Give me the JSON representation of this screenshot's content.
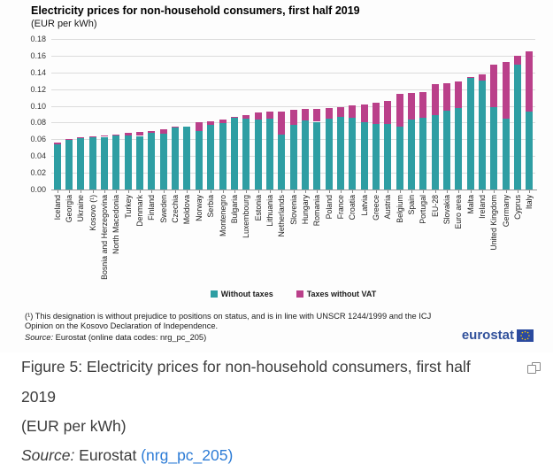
{
  "figure": {
    "title": "Electricity prices for non-household consumers, first half 2019",
    "subtitle": "(EUR per kWh)",
    "footnote_line1": "(¹) This designation is without prejudice to positions on status, and is in line with UNSCR 1244/1999 and the ICJ",
    "footnote_line2": "Opinion on the Kosovo Declaration of Independence.",
    "source_prefix": "Source:",
    "source_text": " Eurostat (online data codes: nrg_pc_205)",
    "logo_text": "eurostat",
    "logo_icon": "eu-flag-icon",
    "colors": {
      "without_taxes": "#2e9ea3",
      "taxes_without_vat": "#ba408a",
      "gridline": "#dcdcdc",
      "logo_blue": "#31519b",
      "link_blue": "#2d7cd6"
    }
  },
  "chart_data": {
    "type": "bar",
    "stacked": true,
    "title": "Electricity prices for non-household consumers, first half 2019",
    "subtitle": "(EUR per kWh)",
    "xlabel": "",
    "ylabel": "EUR per kWh",
    "ylim": [
      0,
      0.18
    ],
    "ytick_step": 0.02,
    "grid": true,
    "legend_position": "bottom",
    "categories": [
      "Iceland",
      "Georgia",
      "Ukraine",
      "Kosovo (¹)",
      "Bosnia and Herzegovina",
      "North Macedonia",
      "Turkey",
      "Denmark",
      "Finland",
      "Sweden",
      "Czechia",
      "Moldova",
      "Norway",
      "Serbia",
      "Montenegro",
      "Bulgaria",
      "Luxembourg",
      "Estonia",
      "Lithuania",
      "Netherlands",
      "Slovenia",
      "Hungary",
      "Romania",
      "Poland",
      "France",
      "Croatia",
      "Latvia",
      "Greece",
      "Austria",
      "Belgium",
      "Spain",
      "Portugal",
      "EU-28",
      "Slovakia",
      "Euro area",
      "Malta",
      "Ireland",
      "United Kingdom",
      "Germany",
      "Cyprus",
      "Italy"
    ],
    "series": [
      {
        "name": "Without taxes",
        "color": "#2e9ea3",
        "values": [
          0.054,
          0.059,
          0.061,
          0.062,
          0.063,
          0.065,
          0.065,
          0.064,
          0.068,
          0.067,
          0.074,
          0.075,
          0.07,
          0.077,
          0.079,
          0.086,
          0.085,
          0.084,
          0.085,
          0.066,
          0.077,
          0.083,
          0.081,
          0.085,
          0.087,
          0.086,
          0.08,
          0.078,
          0.078,
          0.075,
          0.084,
          0.086,
          0.089,
          0.094,
          0.097,
          0.133,
          0.13,
          0.098,
          0.085,
          0.149,
          0.093
        ]
      },
      {
        "name": "Taxes without VAT",
        "color": "#ba408a",
        "values": [
          0.002,
          0.001,
          0.002,
          0.002,
          0.002,
          0.001,
          0.003,
          0.005,
          0.002,
          0.005,
          0.001,
          0.0,
          0.01,
          0.005,
          0.005,
          0.001,
          0.004,
          0.008,
          0.008,
          0.027,
          0.018,
          0.013,
          0.015,
          0.012,
          0.012,
          0.015,
          0.022,
          0.026,
          0.028,
          0.039,
          0.031,
          0.03,
          0.037,
          0.033,
          0.032,
          0.002,
          0.008,
          0.051,
          0.067,
          0.011,
          0.072
        ]
      }
    ]
  },
  "caption": {
    "line1": "Figure 5: Electricity prices for non-household consumers, first half",
    "line2": "2019",
    "line3": "(EUR per kWh)",
    "source_label": "Source:",
    "source_name": " Eurostat ",
    "source_link": "(nrg_pc_205)",
    "expand_icon": "open-in-new-window"
  }
}
